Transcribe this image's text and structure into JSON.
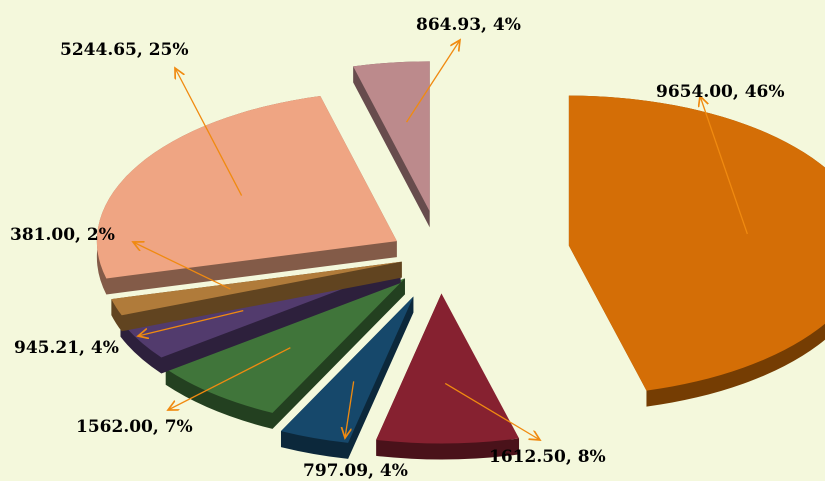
{
  "chart_data": {
    "type": "pie",
    "style": "3d-exploded",
    "legend": "none",
    "slices": [
      {
        "value": 9654.0,
        "label": "9654.00,  46%",
        "color": "#d46e06"
      },
      {
        "value": 1612.5,
        "label": "1612.50,  8%",
        "color": "#862130"
      },
      {
        "value": 797.09,
        "label": "797.09, 4%",
        "color": "#16486b"
      },
      {
        "value": 1562.0,
        "label": "1562.00,  7%",
        "color": "#40753a"
      },
      {
        "value": 945.21,
        "label": "945.21,  4%",
        "color": "#523b6d"
      },
      {
        "value": 381.0,
        "label": "381.00,  2%",
        "color": "#b07b3a"
      },
      {
        "value": 5244.65,
        "label": "5244.65,  25%",
        "color": "#efa583"
      },
      {
        "value": 864.93,
        "label": "864.93,  4%",
        "color": "#bc8a8c"
      }
    ],
    "leader_color": "#f08a10",
    "background": "#f4f8dc"
  }
}
